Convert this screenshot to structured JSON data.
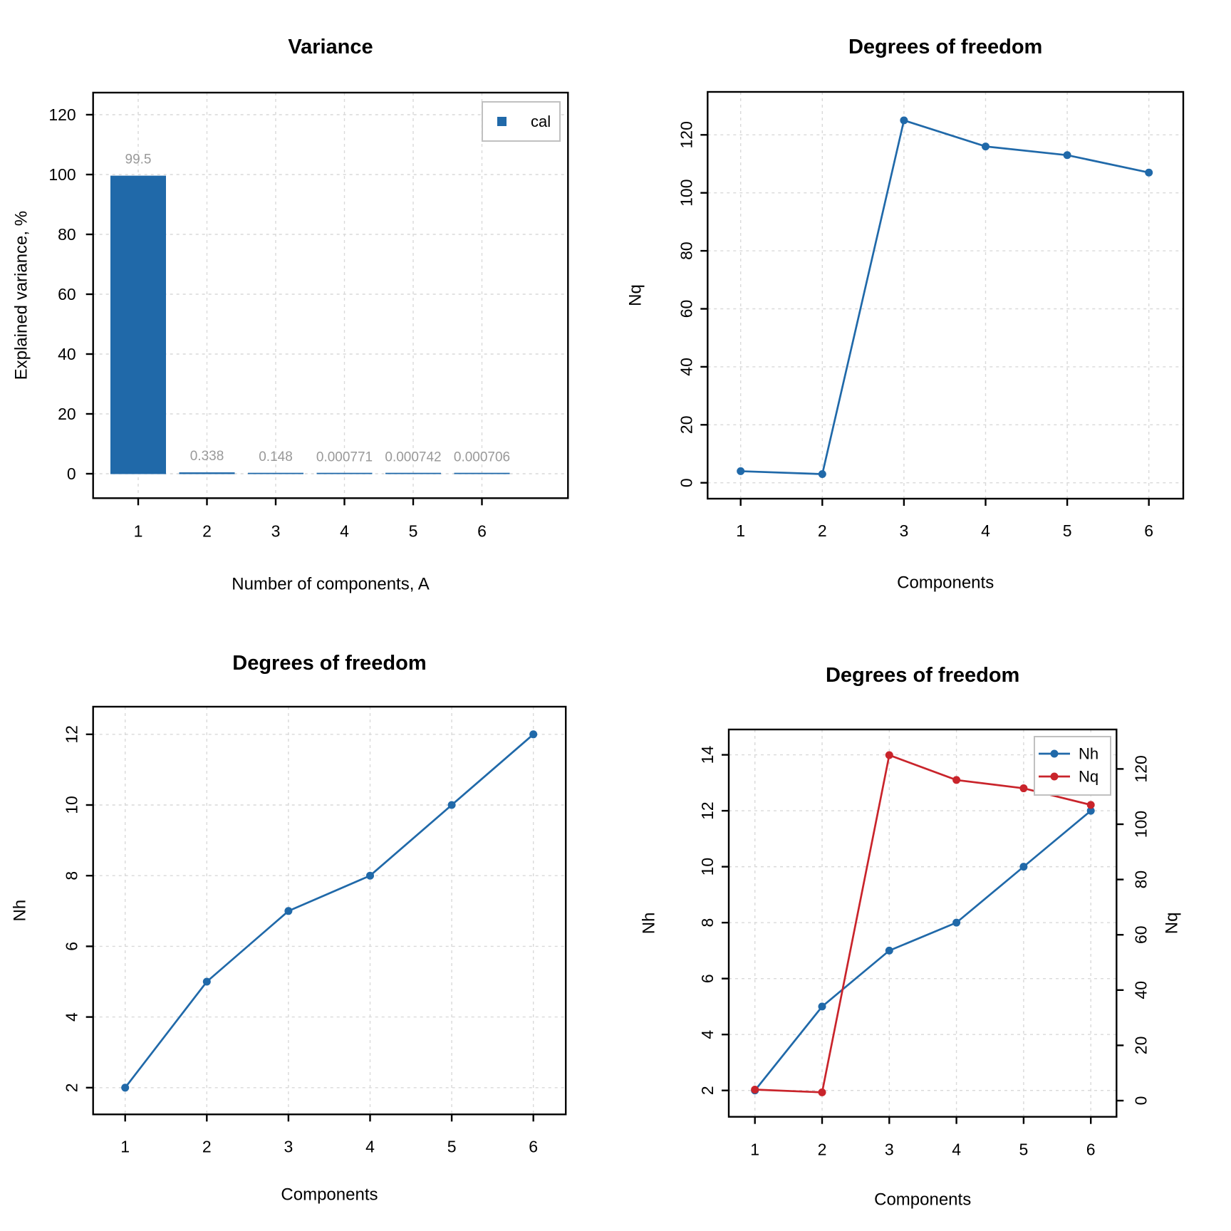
{
  "palette": {
    "blue": "#2069A9",
    "red": "#C9242B",
    "value_label_gray": "#999999",
    "grid_gray": "#D9D9D9",
    "axis_black": "#000000",
    "legend_border_gray": "#C0C0C0"
  },
  "chart_data": [
    {
      "id": "variance",
      "type": "bar",
      "title": "Variance",
      "xlabel": "Number of components, A",
      "ylabel": "Explained variance, %",
      "categories": [
        "1",
        "2",
        "3",
        "4",
        "5",
        "6"
      ],
      "x": [
        1,
        2,
        3,
        4,
        5,
        6
      ],
      "values": [
        99.5,
        0.338,
        0.148,
        0.000771,
        0.000742,
        0.000706
      ],
      "bar_labels": [
        "99.5",
        "0.338",
        "0.148",
        "0.000771",
        "0.000742",
        "0.000706"
      ],
      "yticks": [
        0,
        20,
        40,
        60,
        80,
        100,
        120
      ],
      "ytick_labels": [
        "0",
        "20",
        "40",
        "60",
        "80",
        "100",
        "120"
      ],
      "ylim": [
        -8,
        127.4
      ],
      "grid": true,
      "series_color": "blue",
      "legend": {
        "position": "top-right",
        "entries": [
          {
            "label": "cal",
            "marker": "square",
            "color": "blue"
          }
        ]
      }
    },
    {
      "id": "dof-nq",
      "type": "line",
      "title": "Degrees of freedom",
      "xlabel": "Components",
      "ylabel": "Nq",
      "categories": [
        "1",
        "2",
        "3",
        "4",
        "5",
        "6"
      ],
      "x": [
        1,
        2,
        3,
        4,
        5,
        6
      ],
      "values": [
        4,
        3,
        125,
        116,
        113,
        107
      ],
      "yticks": [
        0,
        20,
        40,
        60,
        80,
        100,
        120
      ],
      "ytick_labels": [
        "0",
        "20",
        "40",
        "60",
        "80",
        "100",
        "120"
      ],
      "ylim": [
        -5.5,
        134.8
      ],
      "grid": true,
      "series_color": "blue",
      "marker": "circle"
    },
    {
      "id": "dof-nh",
      "type": "line",
      "title": "Degrees of freedom",
      "xlabel": "Components",
      "ylabel": "Nh",
      "categories": [
        "1",
        "2",
        "3",
        "4",
        "5",
        "6"
      ],
      "x": [
        1,
        2,
        3,
        4,
        5,
        6
      ],
      "values": [
        2,
        5,
        7,
        8,
        10,
        12
      ],
      "yticks": [
        2,
        4,
        6,
        8,
        10,
        12
      ],
      "ytick_labels": [
        "2",
        "4",
        "6",
        "8",
        "10",
        "12"
      ],
      "ylim": [
        1.25,
        12.8
      ],
      "grid": true,
      "series_color": "blue",
      "marker": "circle"
    },
    {
      "id": "dof-dual",
      "type": "line-dual",
      "title": "Degrees of freedom",
      "xlabel": "Components",
      "ylabel_left": "Nh",
      "ylabel_right": "Nq",
      "categories": [
        "1",
        "2",
        "3",
        "4",
        "5",
        "6"
      ],
      "x": [
        1,
        2,
        3,
        4,
        5,
        6
      ],
      "series": [
        {
          "name": "Nh",
          "axis": "left",
          "color": "blue",
          "values": [
            2,
            5,
            7,
            8,
            10,
            12
          ]
        },
        {
          "name": "Nq",
          "axis": "right",
          "color": "red",
          "values": [
            4,
            3,
            125,
            116,
            113,
            107
          ]
        }
      ],
      "yticks_left": [
        2,
        4,
        6,
        8,
        10,
        12,
        14
      ],
      "ytick_labels_left": [
        "2",
        "4",
        "6",
        "8",
        "10",
        "12",
        "14"
      ],
      "yticks_right": [
        0,
        20,
        40,
        60,
        80,
        100,
        120
      ],
      "ytick_labels_right": [
        "0",
        "20",
        "40",
        "60",
        "80",
        "100",
        "120"
      ],
      "ylim_left": [
        1.4,
        14.9
      ],
      "ylim_right": [
        -5.9,
        134.3
      ],
      "grid": true,
      "marker": "circle",
      "legend": {
        "position": "top-right",
        "entries": [
          {
            "label": "Nh",
            "marker": "line-circle",
            "color": "blue"
          },
          {
            "label": "Nq",
            "marker": "line-circle",
            "color": "red"
          }
        ]
      }
    }
  ]
}
